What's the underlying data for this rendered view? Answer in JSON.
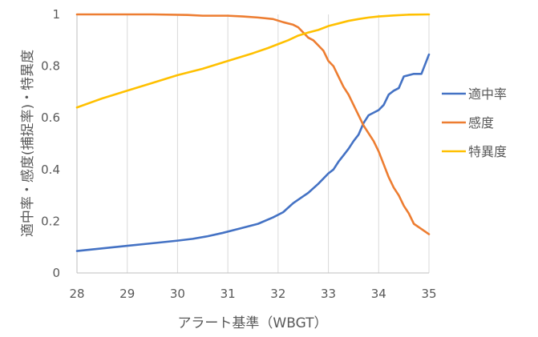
{
  "chart_data": {
    "type": "line",
    "title": "",
    "xlabel": "アラート基準（WBGT）",
    "ylabel": "適中率・感度(捕捉率)・特異度",
    "xlim": [
      28,
      35
    ],
    "ylim": [
      0,
      1
    ],
    "xticks": [
      "28",
      "29",
      "30",
      "31",
      "32",
      "33",
      "34",
      "35"
    ],
    "yticks": [
      "0",
      "0.2",
      "0.4",
      "0.6",
      "0.8",
      "1"
    ],
    "grid": {
      "vertical": true,
      "horizontal": false
    },
    "legend_position": "right",
    "series": [
      {
        "name": "適中率",
        "color": "#4472C4",
        "points": [
          [
            28.0,
            0.085
          ],
          [
            28.5,
            0.095
          ],
          [
            29.0,
            0.105
          ],
          [
            29.5,
            0.115
          ],
          [
            30.0,
            0.125
          ],
          [
            30.3,
            0.132
          ],
          [
            30.6,
            0.142
          ],
          [
            30.9,
            0.155
          ],
          [
            31.2,
            0.17
          ],
          [
            31.6,
            0.19
          ],
          [
            31.9,
            0.215
          ],
          [
            32.1,
            0.235
          ],
          [
            32.3,
            0.27
          ],
          [
            32.45,
            0.29
          ],
          [
            32.6,
            0.31
          ],
          [
            32.8,
            0.345
          ],
          [
            33.0,
            0.385
          ],
          [
            33.1,
            0.4
          ],
          [
            33.2,
            0.43
          ],
          [
            33.3,
            0.455
          ],
          [
            33.4,
            0.48
          ],
          [
            33.5,
            0.51
          ],
          [
            33.6,
            0.535
          ],
          [
            33.7,
            0.58
          ],
          [
            33.8,
            0.61
          ],
          [
            33.9,
            0.62
          ],
          [
            34.0,
            0.63
          ],
          [
            34.1,
            0.65
          ],
          [
            34.2,
            0.69
          ],
          [
            34.3,
            0.705
          ],
          [
            34.4,
            0.715
          ],
          [
            34.5,
            0.76
          ],
          [
            34.6,
            0.765
          ],
          [
            34.7,
            0.77
          ],
          [
            34.85,
            0.77
          ],
          [
            35.0,
            0.845
          ]
        ]
      },
      {
        "name": "感度",
        "color": "#ED7D31",
        "points": [
          [
            28.0,
            1.0
          ],
          [
            29.5,
            1.0
          ],
          [
            30.2,
            0.998
          ],
          [
            30.5,
            0.995
          ],
          [
            31.0,
            0.995
          ],
          [
            31.3,
            0.992
          ],
          [
            31.6,
            0.988
          ],
          [
            31.9,
            0.982
          ],
          [
            32.1,
            0.97
          ],
          [
            32.3,
            0.96
          ],
          [
            32.4,
            0.95
          ],
          [
            32.5,
            0.93
          ],
          [
            32.6,
            0.91
          ],
          [
            32.7,
            0.9
          ],
          [
            32.8,
            0.88
          ],
          [
            32.9,
            0.86
          ],
          [
            33.0,
            0.82
          ],
          [
            33.1,
            0.8
          ],
          [
            33.2,
            0.76
          ],
          [
            33.3,
            0.72
          ],
          [
            33.4,
            0.69
          ],
          [
            33.5,
            0.65
          ],
          [
            33.6,
            0.61
          ],
          [
            33.7,
            0.57
          ],
          [
            33.8,
            0.54
          ],
          [
            33.9,
            0.51
          ],
          [
            34.0,
            0.47
          ],
          [
            34.1,
            0.42
          ],
          [
            34.2,
            0.37
          ],
          [
            34.3,
            0.33
          ],
          [
            34.4,
            0.3
          ],
          [
            34.5,
            0.26
          ],
          [
            34.6,
            0.23
          ],
          [
            34.7,
            0.19
          ],
          [
            34.85,
            0.17
          ],
          [
            35.0,
            0.15
          ]
        ]
      },
      {
        "name": "特異度",
        "color": "#FFC000",
        "points": [
          [
            28.0,
            0.64
          ],
          [
            28.5,
            0.675
          ],
          [
            29.0,
            0.705
          ],
          [
            29.5,
            0.735
          ],
          [
            30.0,
            0.765
          ],
          [
            30.5,
            0.79
          ],
          [
            31.0,
            0.82
          ],
          [
            31.5,
            0.85
          ],
          [
            31.8,
            0.87
          ],
          [
            32.0,
            0.885
          ],
          [
            32.2,
            0.9
          ],
          [
            32.4,
            0.918
          ],
          [
            32.6,
            0.93
          ],
          [
            32.8,
            0.94
          ],
          [
            33.0,
            0.955
          ],
          [
            33.2,
            0.965
          ],
          [
            33.4,
            0.975
          ],
          [
            33.6,
            0.982
          ],
          [
            33.8,
            0.988
          ],
          [
            34.0,
            0.992
          ],
          [
            34.3,
            0.996
          ],
          [
            34.6,
            0.999
          ],
          [
            35.0,
            1.0
          ]
        ]
      }
    ]
  }
}
